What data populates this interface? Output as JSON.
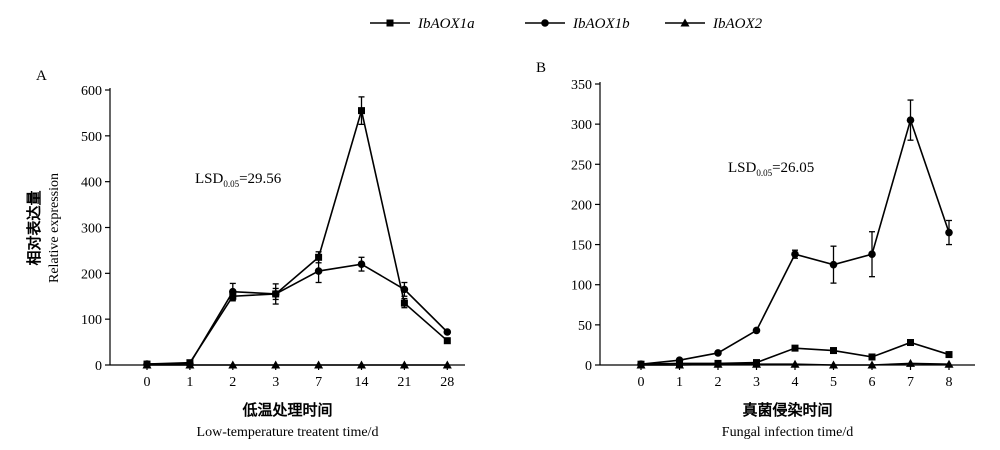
{
  "legend": [
    {
      "italic": "IbAOX",
      "suffix": "1a",
      "marker": "square"
    },
    {
      "italic": "IbAOX",
      "suffix": "1b",
      "marker": "circle"
    },
    {
      "italic": "IbAOX",
      "suffix": "2",
      "marker": "triangle"
    }
  ],
  "y_label_cn": "相对表达量",
  "y_label_en": "Relative expression",
  "chart_data": [
    {
      "type": "line",
      "panel_label": "A",
      "categories": [
        "0",
        "1",
        "2",
        "3",
        "7",
        "14",
        "21",
        "28"
      ],
      "ylim": [
        0,
        600
      ],
      "yticks": [
        0,
        100,
        200,
        300,
        400,
        500,
        600
      ],
      "xlabel_cn": "低温处理时间",
      "xlabel_en": "Low-temperature treatent time/d",
      "lsd_main": "LSD",
      "lsd_sub": "0.05",
      "lsd_value": "=29.56",
      "series": [
        {
          "marker": "square",
          "values": [
            2,
            5,
            150,
            155,
            235,
            555,
            135,
            53
          ],
          "errors": [
            0,
            0,
            10,
            12,
            12,
            30,
            10,
            3
          ]
        },
        {
          "marker": "circle",
          "values": [
            2,
            3,
            160,
            155,
            205,
            220,
            165,
            72
          ],
          "errors": [
            0,
            0,
            18,
            22,
            25,
            15,
            15,
            3
          ]
        },
        {
          "marker": "triangle",
          "values": [
            0,
            0,
            0,
            0,
            0,
            0,
            0,
            0
          ],
          "errors": [
            0,
            0,
            0,
            0,
            0,
            0,
            0,
            0
          ]
        }
      ]
    },
    {
      "type": "line",
      "panel_label": "B",
      "categories": [
        "0",
        "1",
        "2",
        "3",
        "4",
        "5",
        "6",
        "7",
        "8"
      ],
      "ylim": [
        0,
        350
      ],
      "yticks": [
        0,
        50,
        100,
        150,
        200,
        250,
        300,
        350
      ],
      "xlabel_cn": "真菌侵染时间",
      "xlabel_en": "Fungal infection time/d",
      "lsd_main": "LSD",
      "lsd_sub": "0.05",
      "lsd_value": "=26.05",
      "series": [
        {
          "marker": "square",
          "values": [
            1,
            2,
            2,
            3,
            21,
            18,
            10,
            28,
            13
          ],
          "errors": [
            0,
            0,
            0,
            0,
            2,
            2,
            2,
            2,
            2
          ]
        },
        {
          "marker": "circle",
          "values": [
            1,
            6,
            15,
            43,
            138,
            125,
            138,
            305,
            165
          ],
          "errors": [
            0,
            0,
            0,
            0,
            5,
            23,
            28,
            25,
            15
          ]
        },
        {
          "marker": "triangle",
          "values": [
            0,
            0,
            1,
            1,
            1,
            0,
            0,
            2,
            1
          ],
          "errors": [
            0,
            0,
            0,
            0,
            0,
            0,
            0,
            0,
            0
          ]
        }
      ]
    }
  ]
}
